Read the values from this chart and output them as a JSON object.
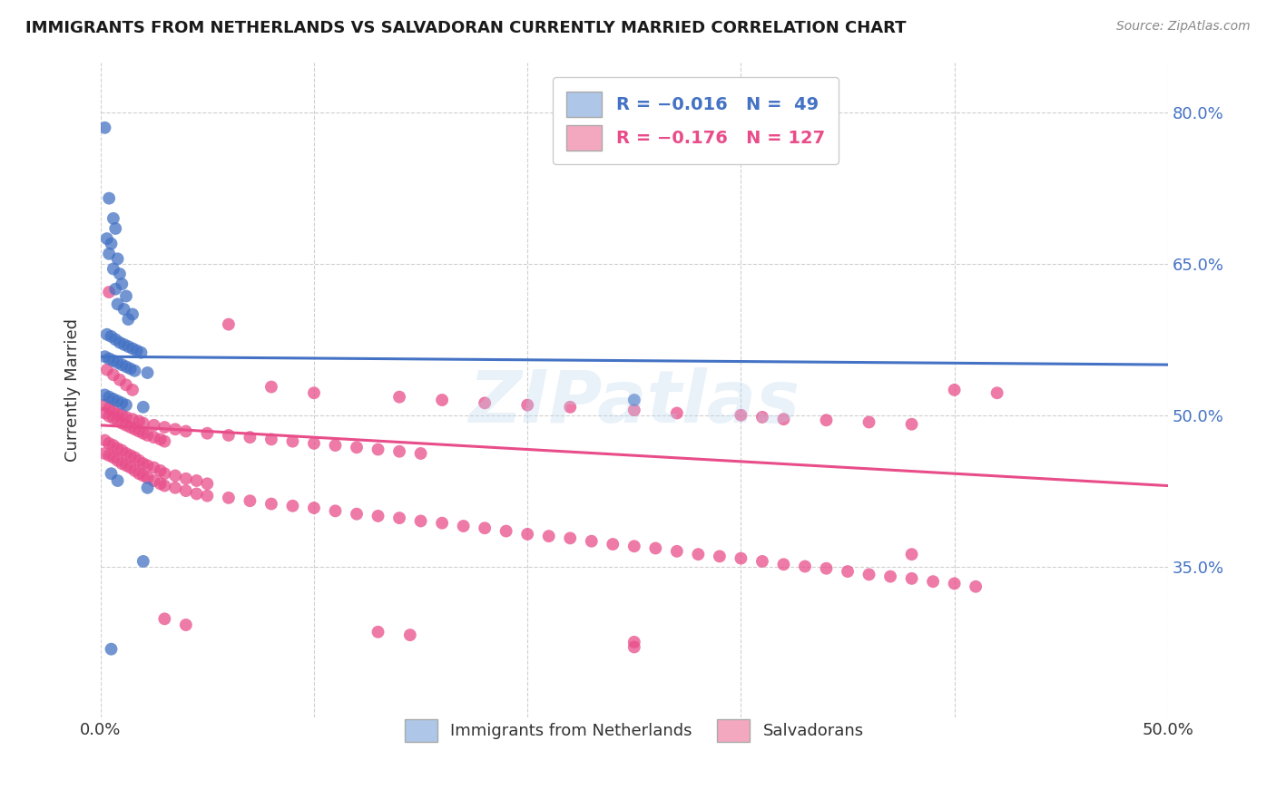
{
  "title": "IMMIGRANTS FROM NETHERLANDS VS SALVADORAN CURRENTLY MARRIED CORRELATION CHART",
  "source": "Source: ZipAtlas.com",
  "ylabel": "Currently Married",
  "xlim": [
    0.0,
    0.5
  ],
  "ylim": [
    0.2,
    0.85
  ],
  "xtick_vals": [
    0.0,
    0.1,
    0.2,
    0.3,
    0.4,
    0.5
  ],
  "xtick_labels": [
    "0.0%",
    "",
    "",
    "",
    "",
    "50.0%"
  ],
  "ytick_vals": [
    0.35,
    0.5,
    0.65,
    0.8
  ],
  "ytick_labels": [
    "35.0%",
    "50.0%",
    "65.0%",
    "80.0%"
  ],
  "legend_label_blue": "Immigrants from Netherlands",
  "legend_label_pink": "Salvadorans",
  "blue_scatter": [
    [
      0.002,
      0.785
    ],
    [
      0.004,
      0.715
    ],
    [
      0.006,
      0.695
    ],
    [
      0.007,
      0.685
    ],
    [
      0.003,
      0.675
    ],
    [
      0.005,
      0.67
    ],
    [
      0.004,
      0.66
    ],
    [
      0.008,
      0.655
    ],
    [
      0.006,
      0.645
    ],
    [
      0.009,
      0.64
    ],
    [
      0.01,
      0.63
    ],
    [
      0.007,
      0.625
    ],
    [
      0.012,
      0.618
    ],
    [
      0.008,
      0.61
    ],
    [
      0.011,
      0.605
    ],
    [
      0.015,
      0.6
    ],
    [
      0.013,
      0.595
    ],
    [
      0.003,
      0.58
    ],
    [
      0.005,
      0.578
    ],
    [
      0.007,
      0.575
    ],
    [
      0.009,
      0.572
    ],
    [
      0.011,
      0.57
    ],
    [
      0.013,
      0.568
    ],
    [
      0.015,
      0.566
    ],
    [
      0.017,
      0.564
    ],
    [
      0.019,
      0.562
    ],
    [
      0.002,
      0.558
    ],
    [
      0.004,
      0.556
    ],
    [
      0.006,
      0.554
    ],
    [
      0.008,
      0.552
    ],
    [
      0.01,
      0.55
    ],
    [
      0.012,
      0.548
    ],
    [
      0.014,
      0.546
    ],
    [
      0.016,
      0.544
    ],
    [
      0.022,
      0.542
    ],
    [
      0.002,
      0.52
    ],
    [
      0.004,
      0.518
    ],
    [
      0.006,
      0.516
    ],
    [
      0.008,
      0.514
    ],
    [
      0.01,
      0.512
    ],
    [
      0.012,
      0.51
    ],
    [
      0.02,
      0.508
    ],
    [
      0.25,
      0.515
    ],
    [
      0.005,
      0.442
    ],
    [
      0.008,
      0.435
    ],
    [
      0.022,
      0.428
    ],
    [
      0.02,
      0.355
    ],
    [
      0.005,
      0.268
    ]
  ],
  "pink_scatter": [
    [
      0.004,
      0.622
    ],
    [
      0.06,
      0.59
    ],
    [
      0.003,
      0.545
    ],
    [
      0.006,
      0.54
    ],
    [
      0.009,
      0.535
    ],
    [
      0.012,
      0.53
    ],
    [
      0.015,
      0.525
    ],
    [
      0.08,
      0.528
    ],
    [
      0.1,
      0.522
    ],
    [
      0.14,
      0.518
    ],
    [
      0.16,
      0.515
    ],
    [
      0.18,
      0.512
    ],
    [
      0.2,
      0.51
    ],
    [
      0.22,
      0.508
    ],
    [
      0.25,
      0.505
    ],
    [
      0.27,
      0.502
    ],
    [
      0.3,
      0.5
    ],
    [
      0.31,
      0.498
    ],
    [
      0.32,
      0.496
    ],
    [
      0.34,
      0.495
    ],
    [
      0.36,
      0.493
    ],
    [
      0.38,
      0.491
    ],
    [
      0.4,
      0.525
    ],
    [
      0.42,
      0.522
    ],
    [
      0.002,
      0.51
    ],
    [
      0.004,
      0.507
    ],
    [
      0.006,
      0.504
    ],
    [
      0.008,
      0.501
    ],
    [
      0.01,
      0.5
    ],
    [
      0.012,
      0.498
    ],
    [
      0.015,
      0.496
    ],
    [
      0.018,
      0.494
    ],
    [
      0.02,
      0.492
    ],
    [
      0.025,
      0.49
    ],
    [
      0.03,
      0.488
    ],
    [
      0.035,
      0.486
    ],
    [
      0.04,
      0.484
    ],
    [
      0.05,
      0.482
    ],
    [
      0.06,
      0.48
    ],
    [
      0.07,
      0.478
    ],
    [
      0.08,
      0.476
    ],
    [
      0.09,
      0.474
    ],
    [
      0.1,
      0.472
    ],
    [
      0.11,
      0.47
    ],
    [
      0.12,
      0.468
    ],
    [
      0.13,
      0.466
    ],
    [
      0.14,
      0.464
    ],
    [
      0.15,
      0.462
    ],
    [
      0.002,
      0.502
    ],
    [
      0.004,
      0.499
    ],
    [
      0.006,
      0.497
    ],
    [
      0.008,
      0.495
    ],
    [
      0.01,
      0.492
    ],
    [
      0.012,
      0.49
    ],
    [
      0.014,
      0.488
    ],
    [
      0.016,
      0.486
    ],
    [
      0.018,
      0.484
    ],
    [
      0.02,
      0.482
    ],
    [
      0.022,
      0.48
    ],
    [
      0.025,
      0.478
    ],
    [
      0.028,
      0.476
    ],
    [
      0.03,
      0.474
    ],
    [
      0.002,
      0.475
    ],
    [
      0.004,
      0.472
    ],
    [
      0.006,
      0.47
    ],
    [
      0.008,
      0.467
    ],
    [
      0.01,
      0.465
    ],
    [
      0.012,
      0.462
    ],
    [
      0.014,
      0.46
    ],
    [
      0.016,
      0.458
    ],
    [
      0.018,
      0.455
    ],
    [
      0.02,
      0.452
    ],
    [
      0.022,
      0.45
    ],
    [
      0.025,
      0.448
    ],
    [
      0.028,
      0.445
    ],
    [
      0.03,
      0.442
    ],
    [
      0.035,
      0.44
    ],
    [
      0.04,
      0.437
    ],
    [
      0.045,
      0.435
    ],
    [
      0.05,
      0.432
    ],
    [
      0.002,
      0.462
    ],
    [
      0.004,
      0.46
    ],
    [
      0.006,
      0.458
    ],
    [
      0.008,
      0.455
    ],
    [
      0.01,
      0.452
    ],
    [
      0.012,
      0.45
    ],
    [
      0.014,
      0.448
    ],
    [
      0.016,
      0.445
    ],
    [
      0.018,
      0.442
    ],
    [
      0.02,
      0.44
    ],
    [
      0.022,
      0.438
    ],
    [
      0.025,
      0.435
    ],
    [
      0.028,
      0.432
    ],
    [
      0.03,
      0.43
    ],
    [
      0.035,
      0.428
    ],
    [
      0.04,
      0.425
    ],
    [
      0.045,
      0.422
    ],
    [
      0.05,
      0.42
    ],
    [
      0.06,
      0.418
    ],
    [
      0.07,
      0.415
    ],
    [
      0.08,
      0.412
    ],
    [
      0.09,
      0.41
    ],
    [
      0.1,
      0.408
    ],
    [
      0.11,
      0.405
    ],
    [
      0.12,
      0.402
    ],
    [
      0.13,
      0.4
    ],
    [
      0.14,
      0.398
    ],
    [
      0.15,
      0.395
    ],
    [
      0.16,
      0.393
    ],
    [
      0.17,
      0.39
    ],
    [
      0.18,
      0.388
    ],
    [
      0.19,
      0.385
    ],
    [
      0.2,
      0.382
    ],
    [
      0.21,
      0.38
    ],
    [
      0.22,
      0.378
    ],
    [
      0.23,
      0.375
    ],
    [
      0.24,
      0.372
    ],
    [
      0.25,
      0.37
    ],
    [
      0.26,
      0.368
    ],
    [
      0.27,
      0.365
    ],
    [
      0.28,
      0.362
    ],
    [
      0.29,
      0.36
    ],
    [
      0.3,
      0.358
    ],
    [
      0.31,
      0.355
    ],
    [
      0.32,
      0.352
    ],
    [
      0.33,
      0.35
    ],
    [
      0.34,
      0.348
    ],
    [
      0.35,
      0.345
    ],
    [
      0.36,
      0.342
    ],
    [
      0.37,
      0.34
    ],
    [
      0.38,
      0.338
    ],
    [
      0.39,
      0.335
    ],
    [
      0.4,
      0.333
    ],
    [
      0.41,
      0.33
    ],
    [
      0.03,
      0.298
    ],
    [
      0.04,
      0.292
    ],
    [
      0.13,
      0.285
    ],
    [
      0.145,
      0.282
    ],
    [
      0.25,
      0.275
    ],
    [
      0.38,
      0.362
    ],
    [
      0.25,
      0.27
    ]
  ],
  "blue_line_x": [
    0.0,
    0.5
  ],
  "blue_line_y": [
    0.558,
    0.55
  ],
  "pink_line_x": [
    0.0,
    0.5
  ],
  "pink_line_y": [
    0.49,
    0.43
  ],
  "blue_color": "#4472c4",
  "pink_color": "#e84d8a",
  "blue_fill": "#aec6e8",
  "pink_fill": "#f4a8c0",
  "watermark": "ZIPatlas",
  "background_color": "#ffffff",
  "grid_color": "#d0d0d0"
}
